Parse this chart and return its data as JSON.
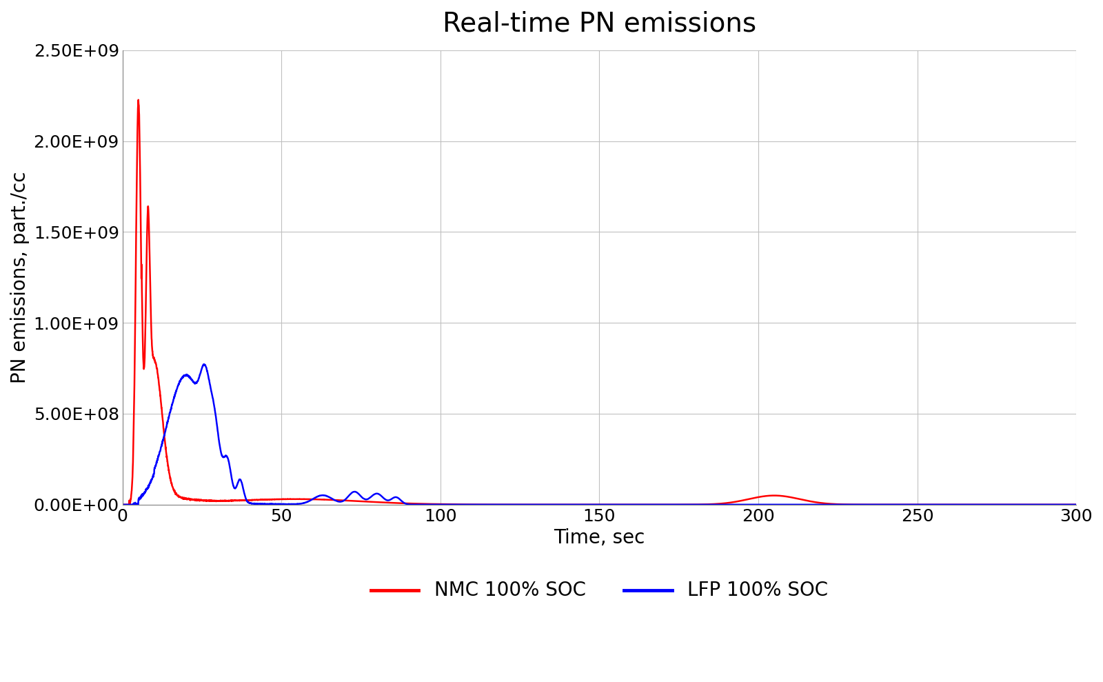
{
  "title": "Real-time PN emissions",
  "xlabel": "Time, sec",
  "ylabel": "PN emissions, part./cc",
  "xlim": [
    0,
    300
  ],
  "ylim": [
    0,
    2500000000.0
  ],
  "yticks": [
    0,
    500000000.0,
    1000000000.0,
    1500000000.0,
    2000000000.0,
    2500000000.0
  ],
  "xticks": [
    0,
    50,
    100,
    150,
    200,
    250,
    300
  ],
  "nmc_color": "#FF0000",
  "lfp_color": "#0000FF",
  "legend_labels": [
    "NMC 100% SOC",
    "LFP 100% SOC"
  ],
  "background_color": "#FFFFFF",
  "title_fontsize": 28,
  "label_fontsize": 20,
  "tick_fontsize": 18,
  "legend_fontsize": 20,
  "line_width": 1.8,
  "figwidth": 16.0,
  "figheight": 9.89,
  "dpi": 100
}
